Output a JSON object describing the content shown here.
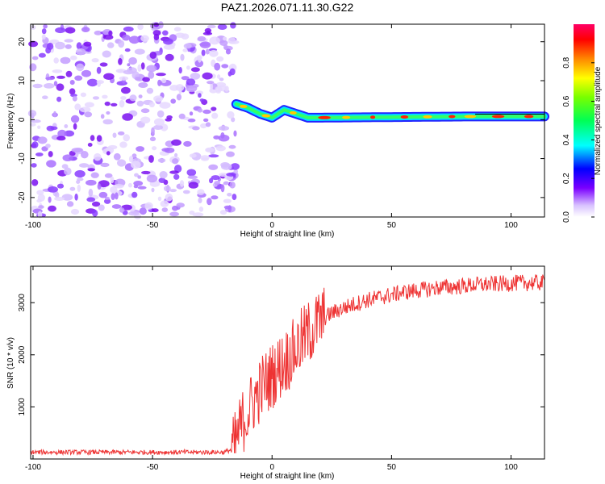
{
  "chart_data": [
    {
      "type": "heatmap",
      "title": "PAZ1.2026.071.11.30.G22",
      "xlabel": "Height of straight line (km)",
      "ylabel": "Frequency (Hz)",
      "xlim": [
        -101,
        114
      ],
      "ylim": [
        -25,
        24.5
      ],
      "xticks": [
        -100,
        -50,
        0,
        50,
        100
      ],
      "yticks": [
        -20,
        -10,
        0,
        10,
        20
      ],
      "ridge_frequency_hz": [
        {
          "x": -15,
          "y": 4.0
        },
        {
          "x": -10,
          "y": 3.0
        },
        {
          "x": -5,
          "y": 1.5
        },
        {
          "x": 0,
          "y": 0.5
        },
        {
          "x": 5,
          "y": 2.5
        },
        {
          "x": 10,
          "y": 1.5
        },
        {
          "x": 15,
          "y": 0.5
        },
        {
          "x": 20,
          "y": 0.5
        },
        {
          "x": 40,
          "y": 0.6
        },
        {
          "x": 80,
          "y": 0.8
        },
        {
          "x": 114,
          "y": 0.8
        }
      ],
      "noise_region_end_km": -15,
      "colorbar": {
        "label": "Normalized spectral amplitude",
        "ticks": [
          0.0,
          0.2,
          0.4,
          0.6,
          0.8
        ],
        "range": [
          0,
          1
        ]
      }
    },
    {
      "type": "line",
      "xlabel": "Height of straight line (km)",
      "ylabel": "SNR (10 * v/v)",
      "xlim": [
        -101,
        114
      ],
      "ylim": [
        0,
        3700
      ],
      "xticks": [
        -100,
        -50,
        0,
        50,
        100
      ],
      "yticks": [
        1000,
        2000,
        3000
      ],
      "series": [
        {
          "name": "SNR",
          "color": "#ee3333",
          "x": [
            -101,
            -20,
            -16,
            -14,
            -12,
            -10,
            -8,
            -6,
            -4,
            -2,
            0,
            2,
            4,
            6,
            8,
            10,
            12,
            14,
            16,
            18,
            20,
            25,
            30,
            35,
            40,
            45,
            50,
            55,
            60,
            65,
            70,
            75,
            80,
            85,
            90,
            95,
            100,
            105,
            110,
            114
          ],
          "values": [
            130,
            130,
            200,
            500,
            750,
            900,
            1100,
            1250,
            1400,
            1500,
            1600,
            1700,
            1800,
            1900,
            2000,
            2100,
            2250,
            2350,
            2450,
            2550,
            2650,
            2800,
            2900,
            2980,
            3050,
            3100,
            3150,
            3200,
            3230,
            3260,
            3290,
            3300,
            3320,
            3340,
            3350,
            3360,
            3370,
            3380,
            3380,
            3380
          ]
        }
      ]
    }
  ]
}
